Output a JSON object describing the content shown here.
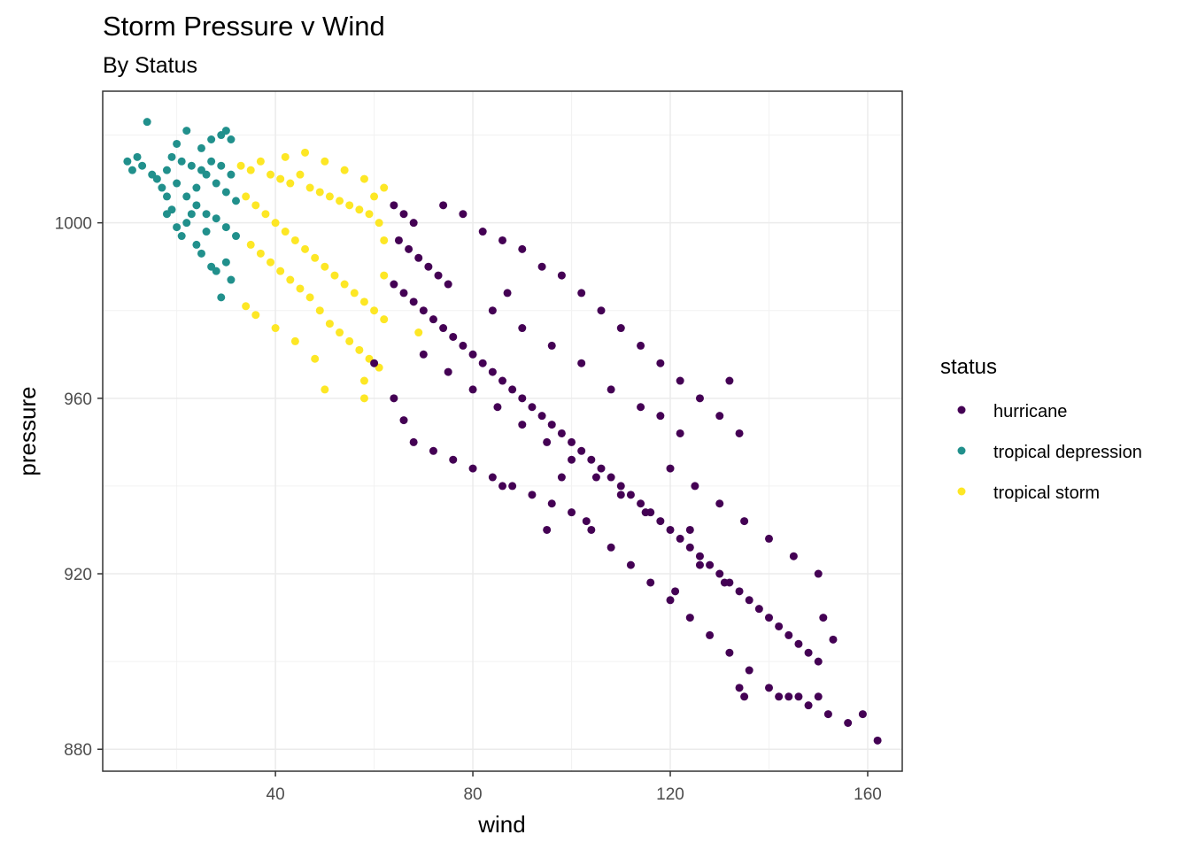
{
  "chart_data": {
    "type": "scatter",
    "title": "Storm Pressure v Wind",
    "subtitle": "By Status",
    "xlabel": "wind",
    "ylabel": "pressure",
    "xlim": [
      5,
      167
    ],
    "ylim": [
      875,
      1030
    ],
    "xticks": [
      40,
      80,
      120,
      160
    ],
    "yticks": [
      880,
      920,
      960,
      1000
    ],
    "grid": true,
    "legend": {
      "title": "status",
      "position": "right",
      "entries": [
        {
          "name": "hurricane",
          "color": "#440154"
        },
        {
          "name": "tropical depression",
          "color": "#21908C"
        },
        {
          "name": "tropical storm",
          "color": "#FDE725"
        }
      ]
    },
    "series": [
      {
        "name": "tropical depression",
        "color": "#21908C",
        "points": [
          [
            14,
            1023
          ],
          [
            10,
            1014
          ],
          [
            11,
            1012
          ],
          [
            12,
            1015
          ],
          [
            13,
            1013
          ],
          [
            15,
            1011
          ],
          [
            16,
            1010
          ],
          [
            17,
            1008
          ],
          [
            18,
            1006
          ],
          [
            19,
            1003
          ],
          [
            20,
            999
          ],
          [
            21,
            997
          ],
          [
            22,
            1000
          ],
          [
            23,
            1002
          ],
          [
            24,
            995
          ],
          [
            25,
            993
          ],
          [
            26,
            998
          ],
          [
            27,
            990
          ],
          [
            28,
            989
          ],
          [
            29,
            983
          ],
          [
            30,
            991
          ],
          [
            31,
            987
          ],
          [
            20,
            1018
          ],
          [
            22,
            1021
          ],
          [
            25,
            1017
          ],
          [
            27,
            1019
          ],
          [
            29,
            1020
          ],
          [
            30,
            1021
          ],
          [
            31,
            1019
          ],
          [
            18,
            1012
          ],
          [
            20,
            1009
          ],
          [
            22,
            1006
          ],
          [
            24,
            1008
          ],
          [
            26,
            1011
          ],
          [
            28,
            1009
          ],
          [
            30,
            1007
          ],
          [
            32,
            1005
          ],
          [
            19,
            1015
          ],
          [
            21,
            1014
          ],
          [
            23,
            1013
          ],
          [
            25,
            1012
          ],
          [
            27,
            1014
          ],
          [
            29,
            1013
          ],
          [
            31,
            1011
          ],
          [
            24,
            1004
          ],
          [
            26,
            1002
          ],
          [
            28,
            1001
          ],
          [
            30,
            999
          ],
          [
            32,
            997
          ],
          [
            18,
            1002
          ]
        ]
      },
      {
        "name": "tropical storm",
        "color": "#FDE725",
        "points": [
          [
            33,
            1013
          ],
          [
            35,
            1012
          ],
          [
            37,
            1014
          ],
          [
            39,
            1011
          ],
          [
            41,
            1010
          ],
          [
            43,
            1009
          ],
          [
            45,
            1011
          ],
          [
            47,
            1008
          ],
          [
            49,
            1007
          ],
          [
            51,
            1006
          ],
          [
            53,
            1005
          ],
          [
            55,
            1004
          ],
          [
            57,
            1003
          ],
          [
            59,
            1002
          ],
          [
            61,
            1000
          ],
          [
            34,
            1006
          ],
          [
            36,
            1004
          ],
          [
            38,
            1002
          ],
          [
            40,
            1000
          ],
          [
            42,
            998
          ],
          [
            44,
            996
          ],
          [
            46,
            994
          ],
          [
            48,
            992
          ],
          [
            50,
            990
          ],
          [
            52,
            988
          ],
          [
            54,
            986
          ],
          [
            56,
            984
          ],
          [
            58,
            982
          ],
          [
            60,
            980
          ],
          [
            62,
            978
          ],
          [
            35,
            995
          ],
          [
            37,
            993
          ],
          [
            39,
            991
          ],
          [
            41,
            989
          ],
          [
            43,
            987
          ],
          [
            45,
            985
          ],
          [
            47,
            983
          ],
          [
            49,
            980
          ],
          [
            51,
            977
          ],
          [
            53,
            975
          ],
          [
            55,
            973
          ],
          [
            57,
            971
          ],
          [
            59,
            969
          ],
          [
            61,
            967
          ],
          [
            34,
            981
          ],
          [
            36,
            979
          ],
          [
            40,
            976
          ],
          [
            44,
            973
          ],
          [
            50,
            962
          ],
          [
            58,
            960
          ],
          [
            58,
            964
          ],
          [
            48,
            969
          ],
          [
            42,
            1015
          ],
          [
            46,
            1016
          ],
          [
            50,
            1014
          ],
          [
            54,
            1012
          ],
          [
            58,
            1010
          ],
          [
            62,
            1008
          ],
          [
            60,
            1006
          ],
          [
            62,
            996
          ],
          [
            62,
            988
          ],
          [
            69,
            975
          ]
        ]
      },
      {
        "name": "hurricane",
        "color": "#440154",
        "points": [
          [
            64,
            1004
          ],
          [
            66,
            1002
          ],
          [
            68,
            1000
          ],
          [
            65,
            996
          ],
          [
            67,
            994
          ],
          [
            69,
            992
          ],
          [
            71,
            990
          ],
          [
            73,
            988
          ],
          [
            75,
            986
          ],
          [
            64,
            986
          ],
          [
            66,
            984
          ],
          [
            68,
            982
          ],
          [
            70,
            980
          ],
          [
            72,
            978
          ],
          [
            74,
            976
          ],
          [
            76,
            974
          ],
          [
            78,
            972
          ],
          [
            80,
            970
          ],
          [
            82,
            968
          ],
          [
            84,
            966
          ],
          [
            86,
            964
          ],
          [
            88,
            962
          ],
          [
            90,
            960
          ],
          [
            92,
            958
          ],
          [
            94,
            956
          ],
          [
            96,
            954
          ],
          [
            98,
            952
          ],
          [
            100,
            950
          ],
          [
            102,
            948
          ],
          [
            104,
            946
          ],
          [
            106,
            944
          ],
          [
            108,
            942
          ],
          [
            110,
            940
          ],
          [
            112,
            938
          ],
          [
            114,
            936
          ],
          [
            116,
            934
          ],
          [
            118,
            932
          ],
          [
            120,
            930
          ],
          [
            122,
            928
          ],
          [
            124,
            926
          ],
          [
            126,
            924
          ],
          [
            128,
            922
          ],
          [
            130,
            920
          ],
          [
            132,
            918
          ],
          [
            134,
            916
          ],
          [
            136,
            914
          ],
          [
            138,
            912
          ],
          [
            140,
            910
          ],
          [
            142,
            908
          ],
          [
            144,
            906
          ],
          [
            146,
            904
          ],
          [
            148,
            902
          ],
          [
            150,
            900
          ],
          [
            70,
            970
          ],
          [
            75,
            966
          ],
          [
            80,
            962
          ],
          [
            85,
            958
          ],
          [
            90,
            954
          ],
          [
            95,
            950
          ],
          [
            100,
            946
          ],
          [
            105,
            942
          ],
          [
            110,
            938
          ],
          [
            115,
            934
          ],
          [
            120,
            944
          ],
          [
            125,
            940
          ],
          [
            130,
            936
          ],
          [
            135,
            932
          ],
          [
            140,
            928
          ],
          [
            145,
            924
          ],
          [
            150,
            920
          ],
          [
            64,
            960
          ],
          [
            66,
            955
          ],
          [
            68,
            950
          ],
          [
            72,
            948
          ],
          [
            76,
            946
          ],
          [
            80,
            944
          ],
          [
            84,
            942
          ],
          [
            88,
            940
          ],
          [
            92,
            938
          ],
          [
            96,
            936
          ],
          [
            74,
            1004
          ],
          [
            78,
            1002
          ],
          [
            82,
            998
          ],
          [
            86,
            996
          ],
          [
            90,
            994
          ],
          [
            94,
            990
          ],
          [
            98,
            988
          ],
          [
            102,
            984
          ],
          [
            106,
            980
          ],
          [
            110,
            976
          ],
          [
            114,
            972
          ],
          [
            118,
            968
          ],
          [
            122,
            964
          ],
          [
            126,
            960
          ],
          [
            130,
            956
          ],
          [
            134,
            952
          ],
          [
            100,
            934
          ],
          [
            104,
            930
          ],
          [
            108,
            926
          ],
          [
            112,
            922
          ],
          [
            116,
            918
          ],
          [
            120,
            914
          ],
          [
            124,
            910
          ],
          [
            128,
            906
          ],
          [
            132,
            902
          ],
          [
            136,
            898
          ],
          [
            140,
            894
          ],
          [
            144,
            892
          ],
          [
            148,
            890
          ],
          [
            152,
            888
          ],
          [
            156,
            886
          ],
          [
            135,
            892
          ],
          [
            142,
            892
          ],
          [
            146,
            892
          ],
          [
            150,
            892
          ],
          [
            153,
            905
          ],
          [
            151,
            910
          ],
          [
            159,
            888
          ],
          [
            162,
            882
          ],
          [
            134,
            894
          ],
          [
            124,
            930
          ],
          [
            126,
            922
          ],
          [
            131,
            918
          ],
          [
            121,
            916
          ],
          [
            87,
            984
          ],
          [
            84,
            980
          ],
          [
            90,
            976
          ],
          [
            96,
            972
          ],
          [
            102,
            968
          ],
          [
            108,
            962
          ],
          [
            114,
            958
          ],
          [
            118,
            956
          ],
          [
            122,
            952
          ],
          [
            132,
            964
          ],
          [
            95,
            930
          ],
          [
            98,
            942
          ],
          [
            103,
            932
          ],
          [
            86,
            940
          ],
          [
            60,
            968
          ]
        ]
      }
    ]
  }
}
